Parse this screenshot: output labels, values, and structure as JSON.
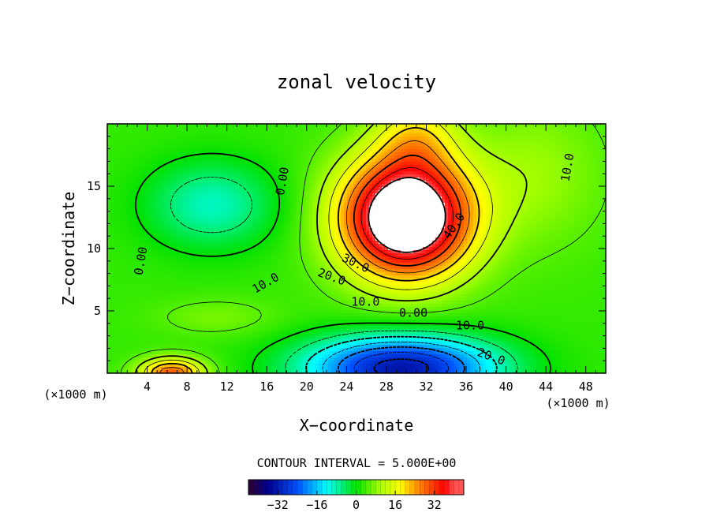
{
  "chart_data": {
    "type": "heatmap",
    "title": "zonal velocity",
    "xlabel": "X−coordinate",
    "ylabel": "Z−coordinate",
    "x_unit_left": "(×1000 m)",
    "x_unit_right": "(×1000 m)",
    "xlim": [
      0,
      50
    ],
    "ylim": [
      0,
      20
    ],
    "xticks": [
      4,
      8,
      12,
      16,
      20,
      24,
      28,
      32,
      36,
      40,
      44,
      48
    ],
    "yticks": [
      5,
      10,
      15
    ],
    "contour_interval_text": "CONTOUR INTERVAL = 5.000E+00",
    "contour_interval": 5.0,
    "contour_labels": [
      {
        "text": "0.00",
        "x": 17.6,
        "y": 15.4,
        "rot": -80
      },
      {
        "text": "0.00",
        "x": 3.4,
        "y": 9.0,
        "rot": -80
      },
      {
        "text": "40.0",
        "x": 34.8,
        "y": 11.8,
        "rot": -55
      },
      {
        "text": "30.0",
        "x": 24.9,
        "y": 8.8,
        "rot": 25
      },
      {
        "text": "20.0",
        "x": 22.5,
        "y": 7.7,
        "rot": 20
      },
      {
        "text": "10.0",
        "x": 15.9,
        "y": 7.2,
        "rot": -30
      },
      {
        "text": "10.0",
        "x": 25.9,
        "y": 5.7,
        "rot": 0
      },
      {
        "text": "0.00",
        "x": 30.7,
        "y": 4.8,
        "rot": 0
      },
      {
        "text": "10.0",
        "x": 36.4,
        "y": 3.8,
        "rot": 0
      },
      {
        "text": "20.0",
        "x": 38.5,
        "y": 1.3,
        "rot": 20
      },
      {
        "text": "10.0",
        "x": 46.2,
        "y": 16.5,
        "rot": -80
      }
    ],
    "features": [
      {
        "name": "positive jet core",
        "x": 30.0,
        "y": 11.5,
        "value": 45
      },
      {
        "name": "negative core near bottom",
        "x": 29.5,
        "y": 0.8,
        "value": -30
      },
      {
        "name": "negative eddy upper left",
        "x": 10.0,
        "y": 13.0,
        "value": -12
      },
      {
        "name": "small positive patch",
        "x": 6.5,
        "y": 0.3,
        "value": 28
      }
    ],
    "colorbar": {
      "min": -44,
      "max": 44,
      "ticks": [
        -32,
        -16,
        0,
        16,
        32
      ],
      "tick_labels": [
        "−32",
        "−16",
        "0",
        "16",
        "32"
      ]
    }
  }
}
